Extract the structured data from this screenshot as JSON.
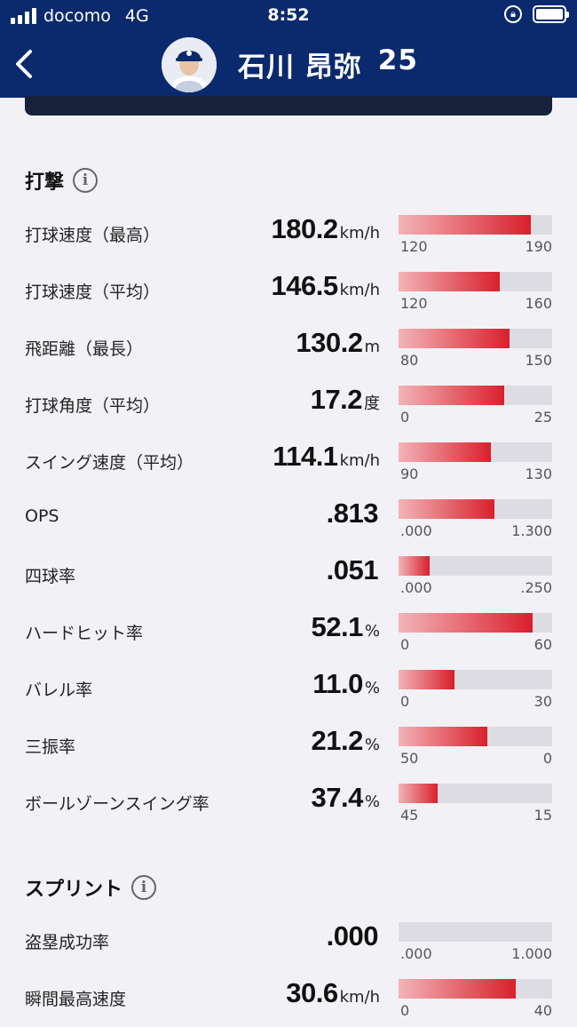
{
  "status_bar": {
    "carrier": "docomo",
    "network": "4G",
    "time": "8:52"
  },
  "header": {
    "back_icon": "chevron-left-icon",
    "player_name": "石川 昂弥",
    "number": "25"
  },
  "sections": [
    {
      "title": "打撃",
      "rows": [
        {
          "label": "打球速度（最高）",
          "value": "180.2",
          "unit": "km/h",
          "min": "120",
          "max": "190",
          "fill": 0.86
        },
        {
          "label": "打球速度（平均）",
          "value": "146.5",
          "unit": "km/h",
          "min": "120",
          "max": "160",
          "fill": 0.66
        },
        {
          "label": "飛距離（最長）",
          "value": "130.2",
          "unit": "m",
          "min": "80",
          "max": "150",
          "fill": 0.72
        },
        {
          "label": "打球角度（平均）",
          "value": "17.2",
          "unit": "度",
          "min": "0",
          "max": "25",
          "fill": 0.69
        },
        {
          "label": "スイング速度（平均）",
          "value": "114.1",
          "unit": "km/h",
          "min": "90",
          "max": "130",
          "fill": 0.6
        },
        {
          "label": "OPS",
          "value": ".813",
          "unit": "",
          "min": ".000",
          "max": "1.300",
          "fill": 0.625
        },
        {
          "label": "四球率",
          "value": ".051",
          "unit": "",
          "min": ".000",
          "max": ".250",
          "fill": 0.204
        },
        {
          "label": "ハードヒット率",
          "value": "52.1",
          "unit": "%",
          "min": "0",
          "max": "60",
          "fill": 0.87
        },
        {
          "label": "バレル率",
          "value": "11.0",
          "unit": "%",
          "min": "0",
          "max": "30",
          "fill": 0.367
        },
        {
          "label": "三振率",
          "value": "21.2",
          "unit": "%",
          "min": "50",
          "max": "0",
          "fill": 0.576
        },
        {
          "label": "ボールゾーンスイング率",
          "value": "37.4",
          "unit": "%",
          "min": "45",
          "max": "15",
          "fill": 0.253
        }
      ]
    },
    {
      "title": "スプリント",
      "rows": [
        {
          "label": "盗塁成功率",
          "value": ".000",
          "unit": "",
          "min": ".000",
          "max": "1.000",
          "fill": 0.0
        },
        {
          "label": "瞬間最高速度",
          "value": "30.6",
          "unit": "km/h",
          "min": "0",
          "max": "40",
          "fill": 0.765
        }
      ]
    }
  ]
}
